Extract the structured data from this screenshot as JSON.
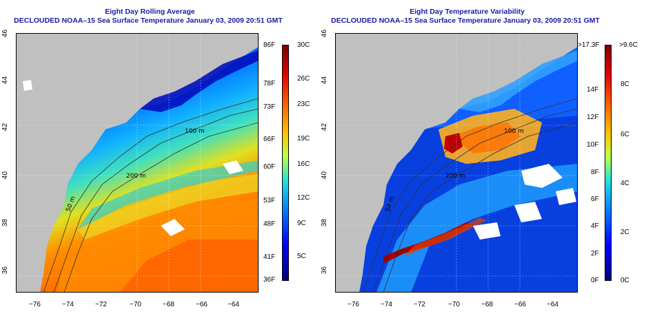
{
  "left_panel": {
    "title_line1": "Eight Day Rolling Average",
    "title_line2": "DECLOUDED NOAA–15 Sea Surface Temperature January 03, 2009 20:51 GMT",
    "x_ticks": [
      "−76",
      "−74",
      "−72",
      "−70",
      "−68",
      "−66",
      "−64"
    ],
    "y_ticks": [
      "36",
      "38",
      "40",
      "42",
      "44",
      "46"
    ],
    "colorbar_f": [
      "86F",
      "78F",
      "73F",
      "66F",
      "60F",
      "53F",
      "48F",
      "41F",
      "36F"
    ],
    "colorbar_c": [
      "30C",
      "26C",
      "23C",
      "19C",
      "16C",
      "12C",
      "9C",
      "5C"
    ],
    "colors": [
      "#000080",
      "#0000ff",
      "#0080ff",
      "#00ffff",
      "#80ff80",
      "#ffff00",
      "#ff8000",
      "#ff0000",
      "#800000"
    ]
  },
  "right_panel": {
    "title_line1": "Eight Day Temperature Variability",
    "title_line2": "DECLOUDED NOAA–15 Sea Surface Temperature January 03, 2009 20:51 GMT",
    "x_ticks": [
      "−76",
      "−74",
      "−72",
      "−70",
      "−68",
      "−66",
      "−64"
    ],
    "y_ticks": [
      "36",
      "38",
      "40",
      "42",
      "44",
      "46"
    ],
    "colorbar_f": [
      ">17.3F",
      "14F",
      "12F",
      "10F",
      "8F",
      "6F",
      "4F",
      "2F",
      "0F"
    ],
    "colorbar_c": [
      ">9.6C",
      "8C",
      "6C",
      "4C",
      "2C",
      "0C"
    ]
  },
  "contour_labels": [
    "100 m",
    "200 m",
    "50 m",
    "100 m",
    "200 m",
    "50 m"
  ],
  "colors": {
    "land": "#c0c0c0",
    "title": "#1a1aa8"
  }
}
